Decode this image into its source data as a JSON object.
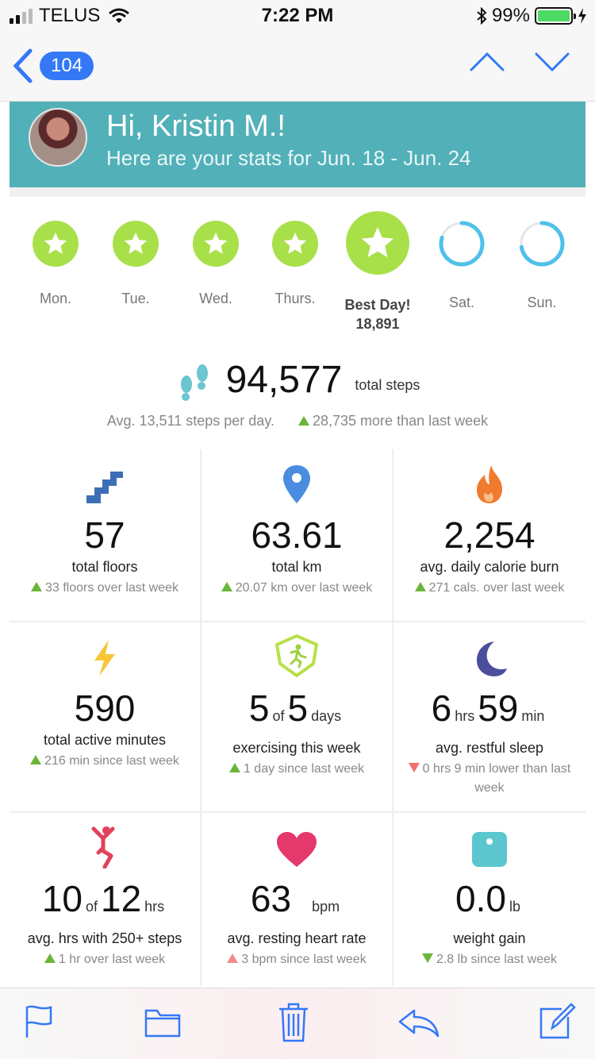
{
  "status_bar": {
    "carrier": "TELUS",
    "time": "7:22 PM",
    "battery": "99%",
    "battery_level": 0.99
  },
  "nav": {
    "badge_count": "104"
  },
  "header": {
    "greeting": "Hi, Kristin M.!",
    "subtitle": "Here are your stats for Jun. 18 - Jun. 24"
  },
  "days": [
    {
      "label": "Mon.",
      "state": "star"
    },
    {
      "label": "Tue.",
      "state": "star"
    },
    {
      "label": "Wed.",
      "state": "star"
    },
    {
      "label": "Thurs.",
      "state": "star"
    },
    {
      "label": "Best Day!",
      "value": "18,891",
      "state": "best"
    },
    {
      "label": "Sat.",
      "state": "ring"
    },
    {
      "label": "Sun.",
      "state": "ring"
    }
  ],
  "steps": {
    "total": "94,577",
    "unit": "total steps",
    "average": "Avg. 13,511 steps per day.",
    "delta": "28,735 more than last week"
  },
  "stats": [
    {
      "icon": "stairs-icon",
      "value": "57",
      "title": "total floors",
      "delta": "33 floors over last week",
      "trend": "up"
    },
    {
      "icon": "location-pin-icon",
      "value": "63.61",
      "title": "total km",
      "delta": "20.07 km over last week",
      "trend": "up"
    },
    {
      "icon": "flame-icon",
      "value": "2,254",
      "title": "avg. daily calorie burn",
      "delta": "271 cals. over last week",
      "trend": "up"
    },
    {
      "icon": "lightning-icon",
      "value": "590",
      "title": "total active minutes",
      "delta": "216 min since last week",
      "trend": "up"
    },
    {
      "icon": "exercise-badge-icon",
      "value_a": "5",
      "of": "of",
      "value_b": "5",
      "unit": "days",
      "title": "exercising this week",
      "delta": "1 day since last week",
      "trend": "up"
    },
    {
      "icon": "moon-icon",
      "value_a": "6",
      "unit_a": "hrs",
      "value_b": "59",
      "unit_b": "min",
      "title": "avg. restful sleep",
      "delta": "0 hrs 9 min lower than last week",
      "trend": "down-red"
    },
    {
      "icon": "stretch-person-icon",
      "value_a": "10",
      "of": "of",
      "value_b": "12",
      "unit": "hrs",
      "title": "avg. hrs with 250+ steps",
      "delta": "1 hr over last week",
      "trend": "up"
    },
    {
      "icon": "heart-icon",
      "value_a": "63",
      "unit": "bpm",
      "title": "avg. resting heart rate",
      "delta": "3 bpm since last week",
      "trend": "up-red"
    },
    {
      "icon": "scale-icon",
      "value_a": "0.0",
      "unit": "lb",
      "title": "weight gain",
      "delta": "2.8 lb since last week",
      "trend": "down"
    }
  ],
  "toolbar": [
    "flag-icon",
    "folder-icon",
    "trash-icon",
    "reply-icon",
    "compose-icon"
  ]
}
